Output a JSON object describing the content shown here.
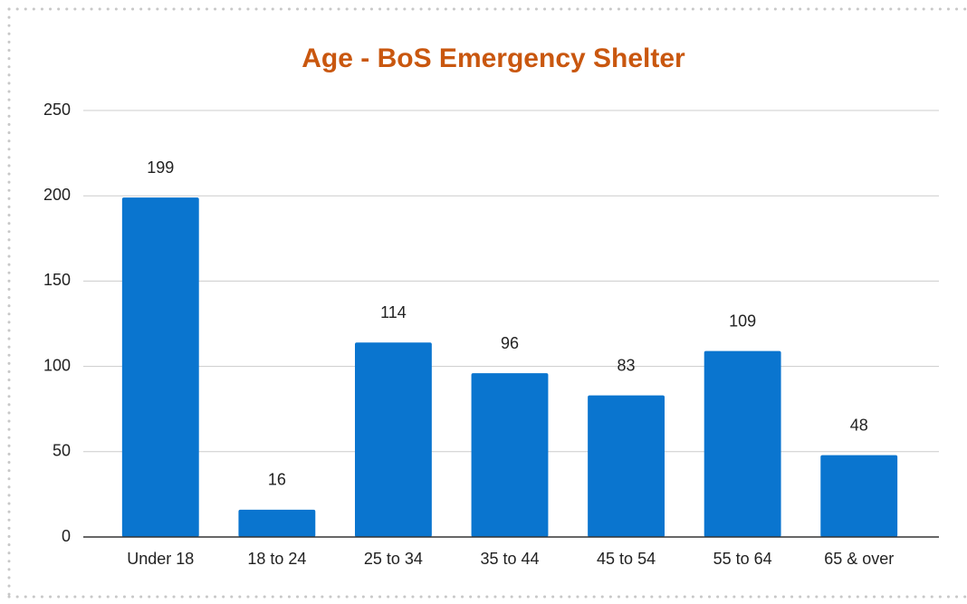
{
  "chart_data": {
    "type": "bar",
    "title": "Age - BoS Emergency Shelter",
    "categories": [
      "Under 18",
      "18 to 24",
      "25 to 34",
      "35 to 44",
      "45 to 54",
      "55 to 64",
      "65 & over"
    ],
    "values": [
      199,
      16,
      114,
      96,
      83,
      109,
      48
    ],
    "color": "#0a75cf",
    "ylim": [
      0,
      250
    ],
    "yticks": [
      0,
      50,
      100,
      150,
      200,
      250
    ],
    "grid": true
  }
}
